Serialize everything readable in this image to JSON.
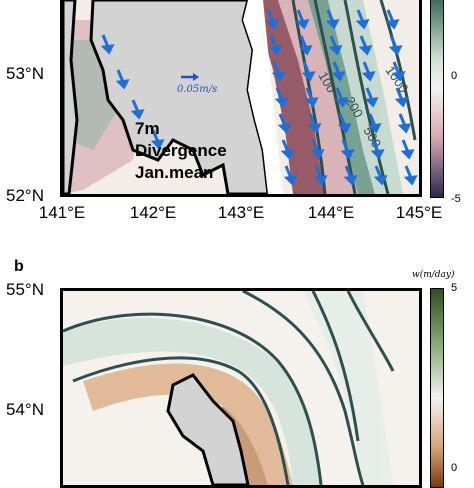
{
  "panel_a": {
    "lat_labels": [
      "53°N",
      "52°N"
    ],
    "lon_labels": [
      "141°E",
      "142°E",
      "143°E",
      "144°E",
      "145°E"
    ],
    "annotation_lines": [
      "7m",
      "Divergence",
      "Jan.mean"
    ],
    "scale_arrow_label": "0.05m/s",
    "contour_labels": [
      "100",
      "200",
      "500",
      "1000"
    ],
    "colorbar_ticks": [
      "0",
      "-5"
    ],
    "colors": {
      "coast": "#000000",
      "land": "#d3d3d3",
      "arrow": "#1f6fd6",
      "contour": "#2e4f4f",
      "positive": "#1d5a4a",
      "negative": "#7a2030"
    }
  },
  "panel_b": {
    "letter": "b",
    "colorbar_title": "w(m/day)",
    "lat_labels": [
      "55°N",
      "54°N"
    ],
    "colorbar_ticks": [
      "5",
      "0"
    ],
    "colors": {
      "positive": "#2f4f1f",
      "negative": "#a85a20",
      "contour": "#2e4f4f"
    }
  }
}
